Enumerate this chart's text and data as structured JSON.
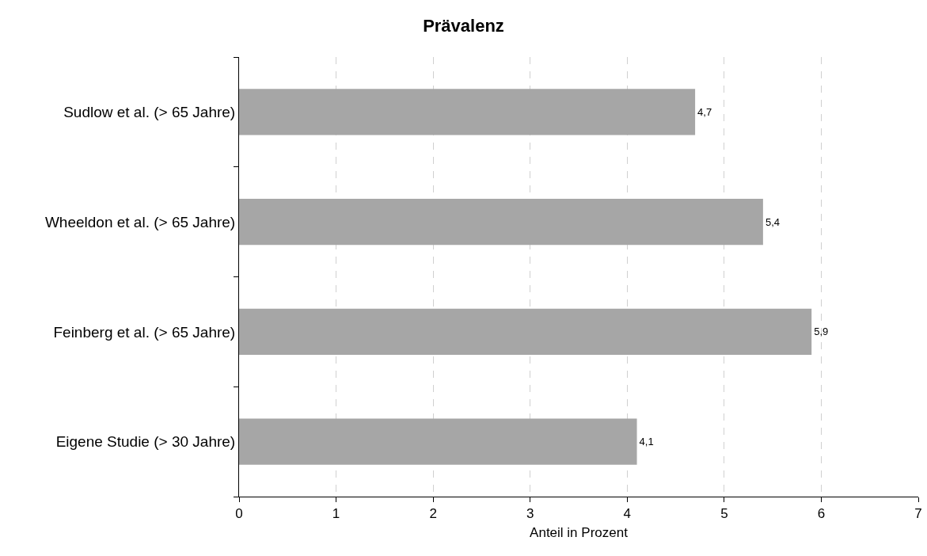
{
  "chart_data": {
    "type": "bar",
    "orientation": "horizontal",
    "title": "Prävalenz",
    "xlabel": "Anteil in Prozent",
    "categories": [
      "Sudlow et al. (> 65 Jahre)",
      "Wheeldon et al. (> 65 Jahre)",
      "Feinberg et al. (> 65 Jahre)",
      "Eigene Studie (> 30 Jahre)"
    ],
    "values": [
      4.7,
      5.4,
      5.9,
      4.1
    ],
    "value_labels": [
      "4,7",
      "5,4",
      "5,9",
      "4,1"
    ],
    "color": "#a6a6a6",
    "xlim": [
      0,
      7
    ],
    "xticks": [
      0,
      1,
      2,
      3,
      4,
      5,
      6,
      7
    ],
    "grid": "x"
  }
}
